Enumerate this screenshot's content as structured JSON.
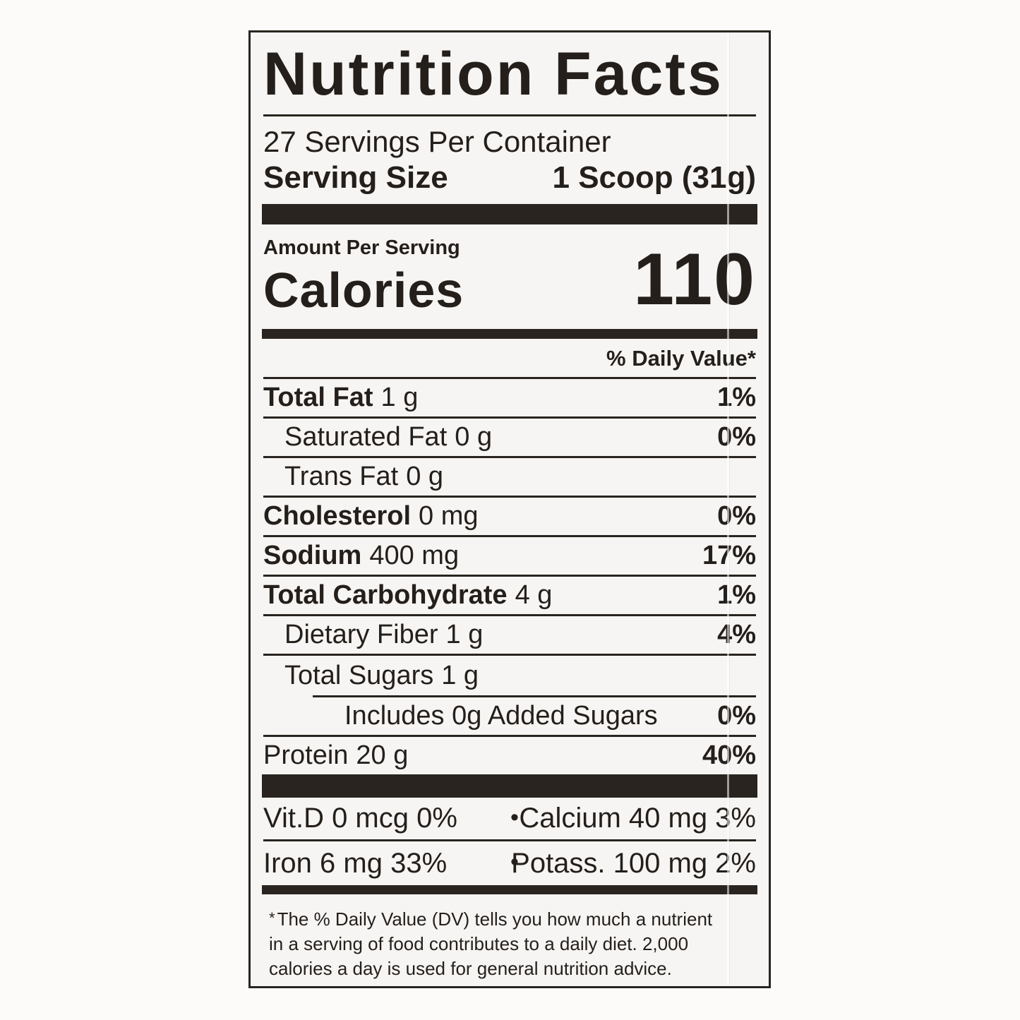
{
  "label": {
    "title": "Nutrition Facts",
    "servings_per_container": "27 Servings Per Container",
    "serving_size_label": "Serving Size",
    "serving_size_value": "1 Scoop (31g)",
    "amount_per_serving": "Amount Per Serving",
    "calories_label": "Calories",
    "calories_value": "110",
    "daily_value_header": "% Daily Value*",
    "nutrient_rows": [
      {
        "name": "Total Fat",
        "amount": "1 g",
        "dv": "1%"
      },
      {
        "name": "Saturated Fat",
        "amount": "0 g",
        "dv": "0%"
      },
      {
        "name": "Trans Fat",
        "amount": "0 g",
        "dv": ""
      },
      {
        "name": "Cholesterol",
        "amount": "0 mg",
        "dv": "0%"
      },
      {
        "name": "Sodium",
        "amount": "400 mg",
        "dv": "17%"
      },
      {
        "name": "Total Carbohydrate",
        "amount": "4 g",
        "dv": "1%"
      },
      {
        "name": "Dietary Fiber",
        "amount": "1 g",
        "dv": "4%"
      },
      {
        "name": "Total Sugars",
        "amount": "1 g",
        "dv": ""
      },
      {
        "name": "Includes 0g Added Sugars",
        "amount": "",
        "dv": "0%"
      },
      {
        "name": "Protein",
        "amount": "20 g",
        "dv": "40%"
      }
    ],
    "micronutrients": {
      "bullet": "•",
      "row1_left": "Vit.D 0 mcg 0%",
      "row1_right": "Calcium 40 mg 3%",
      "row2_left": "Iron 6 mg 33%",
      "row2_right": "Potass. 100 mg 2%"
    },
    "footnote_marker": "*",
    "footnote_lines": [
      "The % Daily Value (DV) tells you how much a nutrient",
      "in a serving of food contributes to a daily diet. 2,000",
      "calories a day is used for general nutrition advice."
    ],
    "colors": {
      "ink": "#29241f",
      "label_bg": "#f7f5f3",
      "page_bg": "#fcfbfa"
    }
  }
}
